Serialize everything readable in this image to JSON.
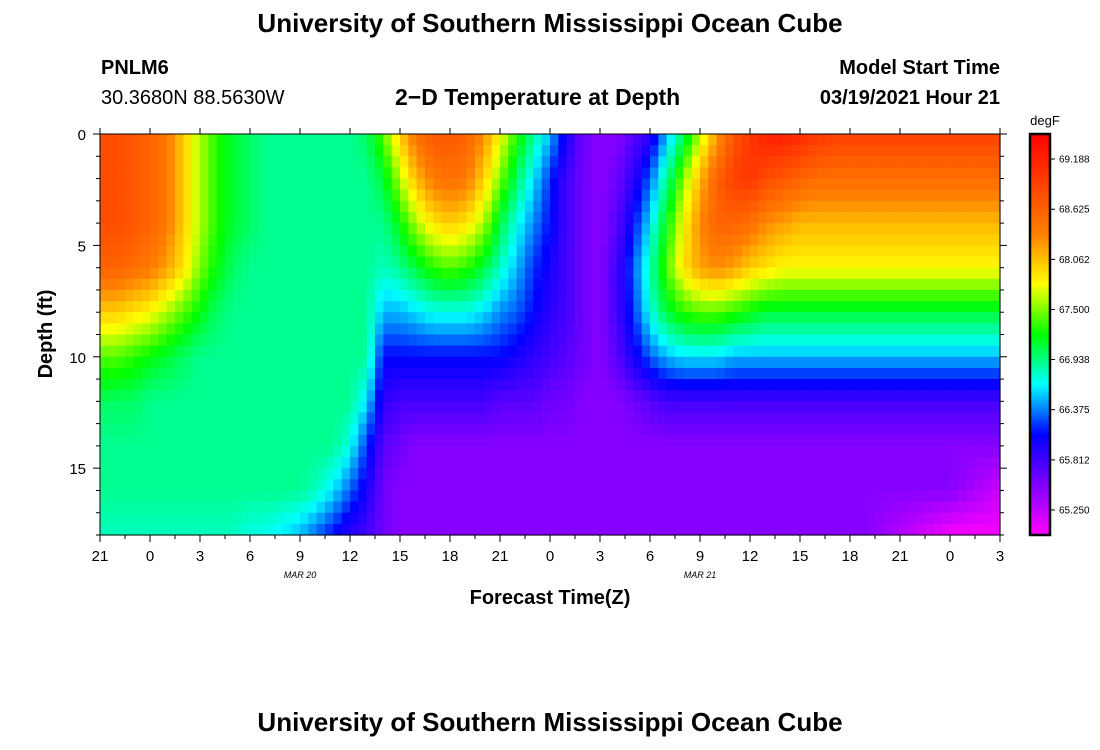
{
  "header": {
    "title_top": "University of Southern Mississippi Ocean Cube",
    "title_bottom": "University of Southern Mississippi Ocean Cube",
    "station_id": "PNLM6",
    "station_coords": "30.3680N 88.5630W",
    "chart_heading": "2−D Temperature at Depth",
    "model_start_label": "Model Start Time",
    "model_start_value": "03/19/2021 Hour 21"
  },
  "chart_data": {
    "type": "heatmap",
    "title": "2−D Temperature at Depth",
    "xlabel": "Forecast Time(Z)",
    "ylabel": "Depth (ft)",
    "x_range_hours": [
      0,
      54
    ],
    "y_range_ft": [
      0,
      18
    ],
    "x_ticks": [
      "21",
      "0",
      "3",
      "6",
      "9",
      "12",
      "15",
      "18",
      "21",
      "0",
      "3",
      "6",
      "9",
      "12",
      "15",
      "18",
      "21",
      "0",
      "3"
    ],
    "date_labels": [
      {
        "label": "MAR 20",
        "hour_offset": 12
      },
      {
        "label": "MAR 21",
        "hour_offset": 36
      }
    ],
    "y_ticks": [
      0,
      5,
      10,
      15
    ],
    "colorbar": {
      "unit": "degF",
      "min": 64.969,
      "max": 69.469,
      "labels": [
        "69.188",
        "68.625",
        "68.062",
        "67.500",
        "66.938",
        "66.375",
        "65.812",
        "65.250"
      ]
    },
    "grid_x_hours": [
      0,
      1,
      2,
      3,
      4,
      5,
      6,
      7,
      8,
      9,
      10,
      11,
      12,
      13,
      14,
      15,
      16,
      17,
      18,
      19,
      20,
      21,
      22,
      23,
      24,
      25,
      26,
      27,
      28,
      29,
      30,
      31,
      32,
      33,
      34,
      35,
      36,
      37,
      38,
      39,
      40,
      41,
      42,
      43,
      44,
      45,
      46,
      47,
      48,
      49,
      50,
      51,
      52,
      53,
      54
    ],
    "grid_depth_ft": [
      0,
      2,
      4,
      6,
      8,
      10,
      12,
      14,
      16,
      18
    ],
    "temperature_degF": [
      [
        68.8,
        68.8,
        68.7,
        68.6,
        68.4,
        68.0,
        67.6,
        67.3,
        67.1,
        67.0,
        66.9,
        66.9,
        66.9,
        66.9,
        66.9,
        66.9,
        67.0,
        67.4,
        68.0,
        68.5,
        68.7,
        68.7,
        68.6,
        68.3,
        67.8,
        67.3,
        66.9,
        66.5,
        66.0,
        65.6,
        65.5,
        65.5,
        65.7,
        65.9,
        66.5,
        67.0,
        67.6,
        68.2,
        68.7,
        69.0,
        69.2,
        69.2,
        69.1,
        69.0,
        68.9,
        68.9,
        68.9,
        68.9,
        68.9,
        68.9,
        68.9,
        68.9,
        68.9,
        68.9,
        68.9
      ],
      [
        68.8,
        68.8,
        68.7,
        68.6,
        68.4,
        68.0,
        67.6,
        67.3,
        67.1,
        67.0,
        66.9,
        66.9,
        66.9,
        66.9,
        66.9,
        66.9,
        66.9,
        67.1,
        67.6,
        68.1,
        68.4,
        68.5,
        68.4,
        68.0,
        67.5,
        67.0,
        66.6,
        66.2,
        65.8,
        65.6,
        65.5,
        65.6,
        65.9,
        66.3,
        66.9,
        67.5,
        68.1,
        68.6,
        68.9,
        69.0,
        68.8,
        68.7,
        68.6,
        68.5,
        68.5,
        68.5,
        68.5,
        68.5,
        68.5,
        68.5,
        68.5,
        68.5,
        68.5,
        68.5,
        68.5
      ],
      [
        68.8,
        68.8,
        68.7,
        68.6,
        68.4,
        68.0,
        67.6,
        67.3,
        67.1,
        67.0,
        66.9,
        66.9,
        66.9,
        66.9,
        66.9,
        66.9,
        66.9,
        66.9,
        67.2,
        67.6,
        67.9,
        68.0,
        67.9,
        67.6,
        67.1,
        66.7,
        66.4,
        66.1,
        65.8,
        65.6,
        65.5,
        65.7,
        66.1,
        66.6,
        67.2,
        67.8,
        68.3,
        68.6,
        68.6,
        68.5,
        68.3,
        68.2,
        68.1,
        68.1,
        68.1,
        68.1,
        68.1,
        68.1,
        68.1,
        68.1,
        68.1,
        68.1,
        68.1,
        68.1,
        68.1
      ],
      [
        68.6,
        68.6,
        68.5,
        68.4,
        68.2,
        67.9,
        67.5,
        67.2,
        67.0,
        66.9,
        66.9,
        66.9,
        66.9,
        66.9,
        66.9,
        66.9,
        66.9,
        66.8,
        66.9,
        67.1,
        67.3,
        67.4,
        67.3,
        67.1,
        66.8,
        66.5,
        66.2,
        66.0,
        65.8,
        65.6,
        65.5,
        65.8,
        66.3,
        66.8,
        67.4,
        67.9,
        68.2,
        68.3,
        68.2,
        68.0,
        67.9,
        67.8,
        67.8,
        67.8,
        67.8,
        67.8,
        67.8,
        67.8,
        67.8,
        67.8,
        67.8,
        67.8,
        67.8,
        67.8,
        67.8
      ],
      [
        68.0,
        68.0,
        67.9,
        67.8,
        67.6,
        67.4,
        67.2,
        67.0,
        66.9,
        66.9,
        66.9,
        66.9,
        66.9,
        66.9,
        66.9,
        66.9,
        66.9,
        66.5,
        66.5,
        66.6,
        66.7,
        66.7,
        66.7,
        66.6,
        66.4,
        66.3,
        66.1,
        65.9,
        65.8,
        65.6,
        65.5,
        65.8,
        66.2,
        66.7,
        67.1,
        67.3,
        67.4,
        67.4,
        67.3,
        67.2,
        67.1,
        67.1,
        67.1,
        67.1,
        67.1,
        67.1,
        67.1,
        67.1,
        67.1,
        67.1,
        67.1,
        67.1,
        67.1,
        67.1,
        67.1
      ],
      [
        67.4,
        67.4,
        67.3,
        67.2,
        67.1,
        67.0,
        66.9,
        66.9,
        66.9,
        66.9,
        66.9,
        66.9,
        66.9,
        66.9,
        66.9,
        66.9,
        66.9,
        66.1,
        66.1,
        66.1,
        66.1,
        66.1,
        66.1,
        66.1,
        66.1,
        66.0,
        65.9,
        65.8,
        65.7,
        65.6,
        65.5,
        65.7,
        66.0,
        66.3,
        66.5,
        66.6,
        66.6,
        66.6,
        66.5,
        66.5,
        66.5,
        66.5,
        66.5,
        66.5,
        66.5,
        66.5,
        66.5,
        66.5,
        66.5,
        66.5,
        66.5,
        66.5,
        66.5,
        66.5,
        66.5
      ],
      [
        67.0,
        67.0,
        67.0,
        66.9,
        66.9,
        66.9,
        66.9,
        66.9,
        66.9,
        66.9,
        66.9,
        66.9,
        66.9,
        66.9,
        66.9,
        66.9,
        66.6,
        65.9,
        65.8,
        65.8,
        65.8,
        65.8,
        65.8,
        65.8,
        65.7,
        65.7,
        65.7,
        65.6,
        65.6,
        65.5,
        65.5,
        65.5,
        65.6,
        65.7,
        65.8,
        65.8,
        65.8,
        65.8,
        65.8,
        65.8,
        65.8,
        65.8,
        65.8,
        65.8,
        65.8,
        65.8,
        65.8,
        65.8,
        65.8,
        65.8,
        65.8,
        65.8,
        65.8,
        65.8,
        65.8
      ],
      [
        66.9,
        66.9,
        66.9,
        66.9,
        66.9,
        66.9,
        66.9,
        66.9,
        66.9,
        66.9,
        66.9,
        66.9,
        66.9,
        66.9,
        66.9,
        66.7,
        66.2,
        65.7,
        65.6,
        65.5,
        65.5,
        65.5,
        65.5,
        65.5,
        65.5,
        65.5,
        65.5,
        65.5,
        65.5,
        65.5,
        65.5,
        65.5,
        65.5,
        65.5,
        65.5,
        65.5,
        65.5,
        65.5,
        65.5,
        65.5,
        65.5,
        65.5,
        65.5,
        65.5,
        65.5,
        65.5,
        65.5,
        65.5,
        65.5,
        65.5,
        65.5,
        65.5,
        65.5,
        65.5,
        65.5
      ],
      [
        66.9,
        66.9,
        66.9,
        66.9,
        66.9,
        66.9,
        66.9,
        66.9,
        66.9,
        66.9,
        66.9,
        66.9,
        66.9,
        66.8,
        66.6,
        66.3,
        66.0,
        65.6,
        65.5,
        65.5,
        65.5,
        65.5,
        65.5,
        65.5,
        65.5,
        65.5,
        65.5,
        65.5,
        65.5,
        65.5,
        65.5,
        65.5,
        65.5,
        65.5,
        65.5,
        65.5,
        65.5,
        65.5,
        65.5,
        65.5,
        65.5,
        65.5,
        65.5,
        65.5,
        65.5,
        65.5,
        65.5,
        65.5,
        65.5,
        65.5,
        65.5,
        65.5,
        65.4,
        65.3,
        65.2
      ],
      [
        66.8,
        66.8,
        66.8,
        66.8,
        66.8,
        66.8,
        66.8,
        66.8,
        66.8,
        66.7,
        66.7,
        66.6,
        66.5,
        66.3,
        66.1,
        65.9,
        65.8,
        65.6,
        65.5,
        65.5,
        65.5,
        65.5,
        65.5,
        65.5,
        65.5,
        65.5,
        65.5,
        65.5,
        65.5,
        65.5,
        65.5,
        65.5,
        65.5,
        65.5,
        65.5,
        65.5,
        65.5,
        65.5,
        65.5,
        65.5,
        65.5,
        65.5,
        65.5,
        65.5,
        65.5,
        65.5,
        65.5,
        65.4,
        65.3,
        65.2,
        65.1,
        65.0,
        65.0,
        65.0,
        65.0
      ]
    ]
  }
}
